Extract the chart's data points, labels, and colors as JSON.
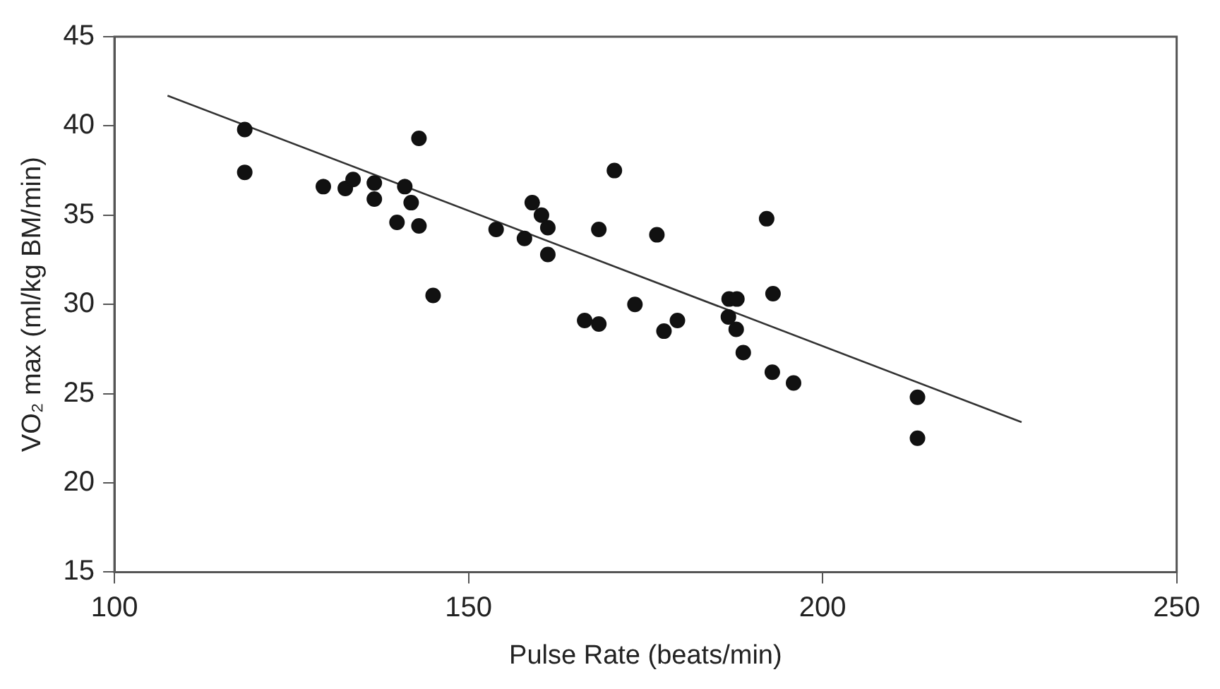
{
  "chart_data": {
    "type": "scatter",
    "xlabel": "Pulse Rate (beats/min)",
    "ylabel": "VO₂ max (ml/kg BM/min)",
    "xlim": [
      100,
      250
    ],
    "xticks": [
      100,
      150,
      200,
      250
    ],
    "ylim": [
      15,
      45
    ],
    "yticks": [
      15,
      20,
      25,
      30,
      35,
      40,
      45
    ],
    "grid": false,
    "legend": false,
    "marker": "circle",
    "series": [
      {
        "type": "scatter",
        "color": "#111111",
        "x": [
          118.4,
          118.4,
          129.5,
          132.6,
          133.7,
          136.7,
          136.7,
          139.9,
          141.0,
          141.9,
          143.0,
          143.0,
          145.0,
          153.9,
          157.9,
          159.0,
          160.3,
          161.2,
          161.2,
          166.4,
          168.4,
          168.4,
          170.6,
          176.6,
          173.5,
          177.6,
          179.5,
          192.1,
          193.0,
          186.8,
          187.9,
          186.7,
          187.8,
          188.8,
          192.9,
          195.9,
          213.4,
          213.4
        ],
        "values": [
          39.8,
          37.4,
          36.6,
          36.5,
          37.0,
          36.8,
          35.9,
          34.6,
          36.6,
          35.7,
          39.3,
          34.4,
          30.5,
          34.2,
          33.7,
          35.7,
          35.0,
          34.3,
          32.8,
          29.1,
          28.9,
          34.2,
          37.5,
          33.9,
          30.0,
          28.5,
          29.1,
          34.8,
          30.6,
          30.3,
          30.3,
          29.3,
          28.6,
          27.3,
          26.2,
          25.6,
          24.8,
          22.5
        ]
      },
      {
        "type": "line",
        "color": "#333333",
        "marker": "none",
        "line_style": "solid",
        "x": [
          107.5,
          228.1
        ],
        "values": [
          41.7,
          23.4
        ]
      }
    ]
  }
}
